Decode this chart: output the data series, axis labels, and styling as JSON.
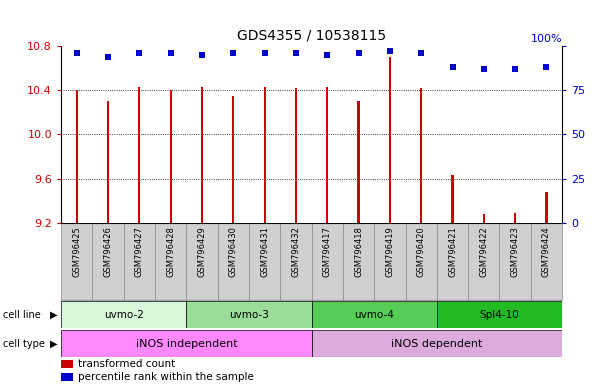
{
  "title": "GDS4355 / 10538115",
  "samples": [
    "GSM796425",
    "GSM796426",
    "GSM796427",
    "GSM796428",
    "GSM796429",
    "GSM796430",
    "GSM796431",
    "GSM796432",
    "GSM796417",
    "GSM796418",
    "GSM796419",
    "GSM796420",
    "GSM796421",
    "GSM796422",
    "GSM796423",
    "GSM796424"
  ],
  "transformed_count": [
    10.4,
    10.3,
    10.43,
    10.4,
    10.43,
    10.35,
    10.43,
    10.42,
    10.43,
    10.3,
    10.7,
    10.42,
    9.63,
    9.28,
    9.29,
    9.48
  ],
  "percentile_rank": [
    96,
    94,
    96,
    96,
    95,
    96,
    96,
    96,
    95,
    96,
    97,
    96,
    88,
    87,
    87,
    88
  ],
  "ylim_left": [
    9.2,
    10.8
  ],
  "ylim_right": [
    0,
    100
  ],
  "yticks_left": [
    9.2,
    9.6,
    10.0,
    10.4,
    10.8
  ],
  "yticks_right": [
    0,
    25,
    50,
    75,
    100
  ],
  "cell_line_groups": [
    {
      "label": "uvmo-2",
      "start": 0,
      "end": 3,
      "color": "#d9f7d9"
    },
    {
      "label": "uvmo-3",
      "start": 4,
      "end": 7,
      "color": "#99dd99"
    },
    {
      "label": "uvmo-4",
      "start": 8,
      "end": 11,
      "color": "#55cc55"
    },
    {
      "label": "Spl4-10",
      "start": 12,
      "end": 15,
      "color": "#22bb22"
    }
  ],
  "cell_type_groups": [
    {
      "label": "iNOS independent",
      "start": 0,
      "end": 7,
      "color": "#ff88ff"
    },
    {
      "label": "iNOS dependent",
      "start": 8,
      "end": 15,
      "color": "#ddaadd"
    }
  ],
  "bar_color": "#cc0000",
  "dot_color": "#0000cc",
  "background_color": "#ffffff",
  "label_color_left": "#cc0000",
  "label_color_right": "#0000cc",
  "base_value": 9.2,
  "bar_width": 0.07,
  "xlabels_bg": "#d0d0d0",
  "xlabels_border": "#888888"
}
